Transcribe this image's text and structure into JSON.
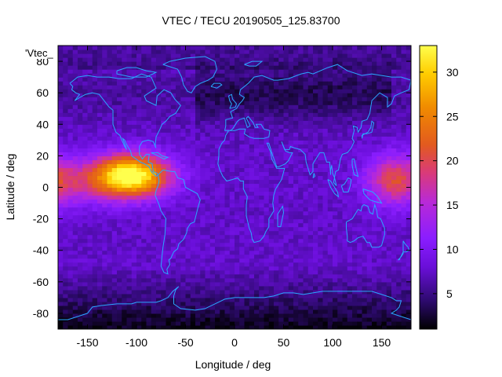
{
  "title": "VTEC / TECU 20190505_125.83700",
  "key_label": "'Vtec_",
  "colors": {
    "coastline": "#2aa7ff",
    "frame": "#000000",
    "palette": [
      "#000000",
      "#2d0a6e",
      "#6a0fd9",
      "#8a1dff",
      "#b92ad6",
      "#d93a7a",
      "#e25a1f",
      "#f08a00",
      "#ffcc00",
      "#ffff4d"
    ]
  },
  "chart_data": {
    "type": "heatmap",
    "title": "VTEC / TECU 20190505_125.83700",
    "xlabel": "Longitude / deg",
    "ylabel": "Latitude / deg",
    "xlim": [
      -180,
      180
    ],
    "ylim": [
      -90,
      90
    ],
    "xticks": [
      -150,
      -100,
      -50,
      0,
      50,
      100,
      150
    ],
    "yticks": [
      -80,
      -60,
      -40,
      -20,
      0,
      20,
      40,
      60,
      80
    ],
    "colorbar": {
      "range": [
        1,
        33
      ],
      "ticks": [
        5,
        10,
        15,
        20,
        25,
        30
      ]
    },
    "grid": false,
    "features": [
      {
        "description": "equatorial anomaly peak",
        "lon": -105,
        "lat": 8,
        "value": 33
      },
      {
        "description": "equatorial anomaly east",
        "lon": 165,
        "lat": 5,
        "value": 20
      },
      {
        "description": "mid-latitude background",
        "value": 8
      },
      {
        "description": "high-latitude minimum",
        "value": 2
      }
    ]
  }
}
